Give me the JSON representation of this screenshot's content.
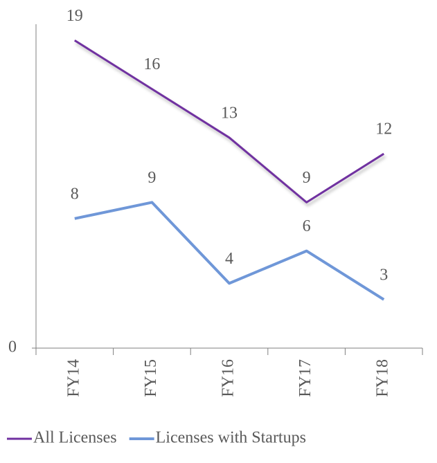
{
  "chart_data": {
    "type": "line",
    "categories": [
      "FY14",
      "FY15",
      "FY16",
      "FY17",
      "FY18"
    ],
    "series": [
      {
        "name": "All Licenses",
        "color": "#7030a0",
        "values": [
          19,
          16,
          13,
          9,
          12
        ]
      },
      {
        "name": "Licenses with Startups",
        "color": "#6f97d8",
        "values": [
          8,
          9,
          4,
          6,
          3
        ]
      }
    ],
    "ylim": [
      0,
      20
    ],
    "yticks": [
      0
    ],
    "grid": false,
    "legend": "bottom"
  }
}
